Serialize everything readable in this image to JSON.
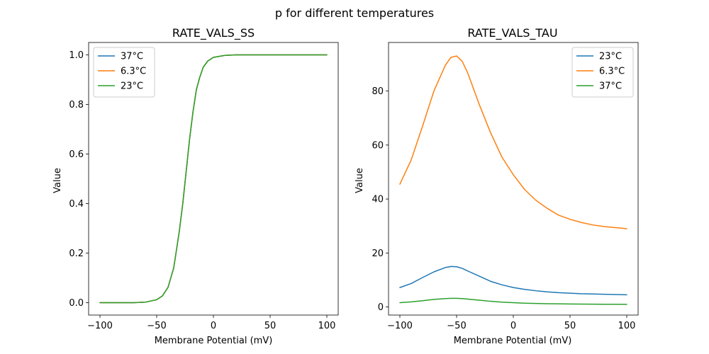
{
  "figure": {
    "suptitle": "p for different temperatures"
  },
  "chart_data": [
    {
      "type": "line",
      "title": "RATE_VALS_SS",
      "xlabel": "Membrane Potential (mV)",
      "ylabel": "Value",
      "xlim": [
        -110,
        110
      ],
      "ylim": [
        -0.05,
        1.05
      ],
      "xticks": [
        -100,
        -50,
        0,
        50,
        100
      ],
      "xtick_labels": [
        "−100",
        "−50",
        "0",
        "50",
        "100"
      ],
      "yticks": [
        0.0,
        0.2,
        0.4,
        0.6,
        0.8,
        1.0
      ],
      "ytick_labels": [
        "0.0",
        "0.2",
        "0.4",
        "0.6",
        "0.8",
        "1.0"
      ],
      "grid": false,
      "legend": "top-left",
      "x": [
        -100,
        -90,
        -80,
        -70,
        -60,
        -50,
        -45,
        -40,
        -35,
        -30,
        -27,
        -24,
        -21,
        -18,
        -15,
        -12,
        -9,
        -5,
        0,
        10,
        20,
        40,
        60,
        80,
        100
      ],
      "series": [
        {
          "name": "37°C",
          "color": "#1f77b4",
          "values": [
            0.0,
            0.0,
            0.0,
            0.0,
            0.002,
            0.012,
            0.027,
            0.062,
            0.14,
            0.29,
            0.4,
            0.53,
            0.66,
            0.77,
            0.86,
            0.91,
            0.95,
            0.975,
            0.99,
            0.998,
            1.0,
            1.0,
            1.0,
            1.0,
            1.0
          ]
        },
        {
          "name": "6.3°C",
          "color": "#ff7f0e",
          "values": [
            0.0,
            0.0,
            0.0,
            0.0,
            0.002,
            0.012,
            0.027,
            0.062,
            0.14,
            0.29,
            0.4,
            0.53,
            0.66,
            0.77,
            0.86,
            0.91,
            0.95,
            0.975,
            0.99,
            0.998,
            1.0,
            1.0,
            1.0,
            1.0,
            1.0
          ]
        },
        {
          "name": "23°C",
          "color": "#2ca02c",
          "values": [
            0.0,
            0.0,
            0.0,
            0.0,
            0.002,
            0.012,
            0.027,
            0.062,
            0.14,
            0.29,
            0.4,
            0.53,
            0.66,
            0.77,
            0.86,
            0.91,
            0.95,
            0.975,
            0.99,
            0.998,
            1.0,
            1.0,
            1.0,
            1.0,
            1.0
          ]
        }
      ]
    },
    {
      "type": "line",
      "title": "RATE_VALS_TAU",
      "xlabel": "Membrane Potential (mV)",
      "ylabel": "Value",
      "xlim": [
        -110,
        110
      ],
      "ylim": [
        -3,
        98
      ],
      "xticks": [
        -100,
        -50,
        0,
        50,
        100
      ],
      "xtick_labels": [
        "−100",
        "−50",
        "0",
        "50",
        "100"
      ],
      "yticks": [
        0,
        20,
        40,
        60,
        80
      ],
      "ytick_labels": [
        "0",
        "20",
        "40",
        "60",
        "80"
      ],
      "grid": false,
      "legend": "top-right",
      "x": [
        -100,
        -90,
        -80,
        -70,
        -60,
        -55,
        -50,
        -45,
        -40,
        -30,
        -20,
        -10,
        0,
        10,
        20,
        30,
        40,
        50,
        60,
        70,
        80,
        90,
        100
      ],
      "series": [
        {
          "name": "23°C",
          "color": "#1f77b4",
          "values": [
            7.2,
            8.7,
            10.9,
            13.0,
            14.6,
            15.0,
            14.9,
            14.3,
            13.3,
            11.4,
            9.5,
            8.2,
            7.2,
            6.5,
            6.0,
            5.6,
            5.3,
            5.1,
            4.9,
            4.8,
            4.7,
            4.6,
            4.5
          ]
        },
        {
          "name": "6.3°C",
          "color": "#ff7f0e",
          "values": [
            45.5,
            54.5,
            67.0,
            80.0,
            89.5,
            92.5,
            93.0,
            91.0,
            86.5,
            75.0,
            64.5,
            55.5,
            49.0,
            43.5,
            39.5,
            36.5,
            34.0,
            32.5,
            31.3,
            30.4,
            29.8,
            29.4,
            29.0
          ]
        },
        {
          "name": "37°C",
          "color": "#2ca02c",
          "values": [
            1.6,
            1.9,
            2.3,
            2.8,
            3.1,
            3.2,
            3.2,
            3.1,
            2.9,
            2.5,
            2.1,
            1.8,
            1.6,
            1.4,
            1.3,
            1.2,
            1.15,
            1.1,
            1.05,
            1.02,
            1.0,
            0.99,
            0.98
          ]
        }
      ]
    }
  ]
}
